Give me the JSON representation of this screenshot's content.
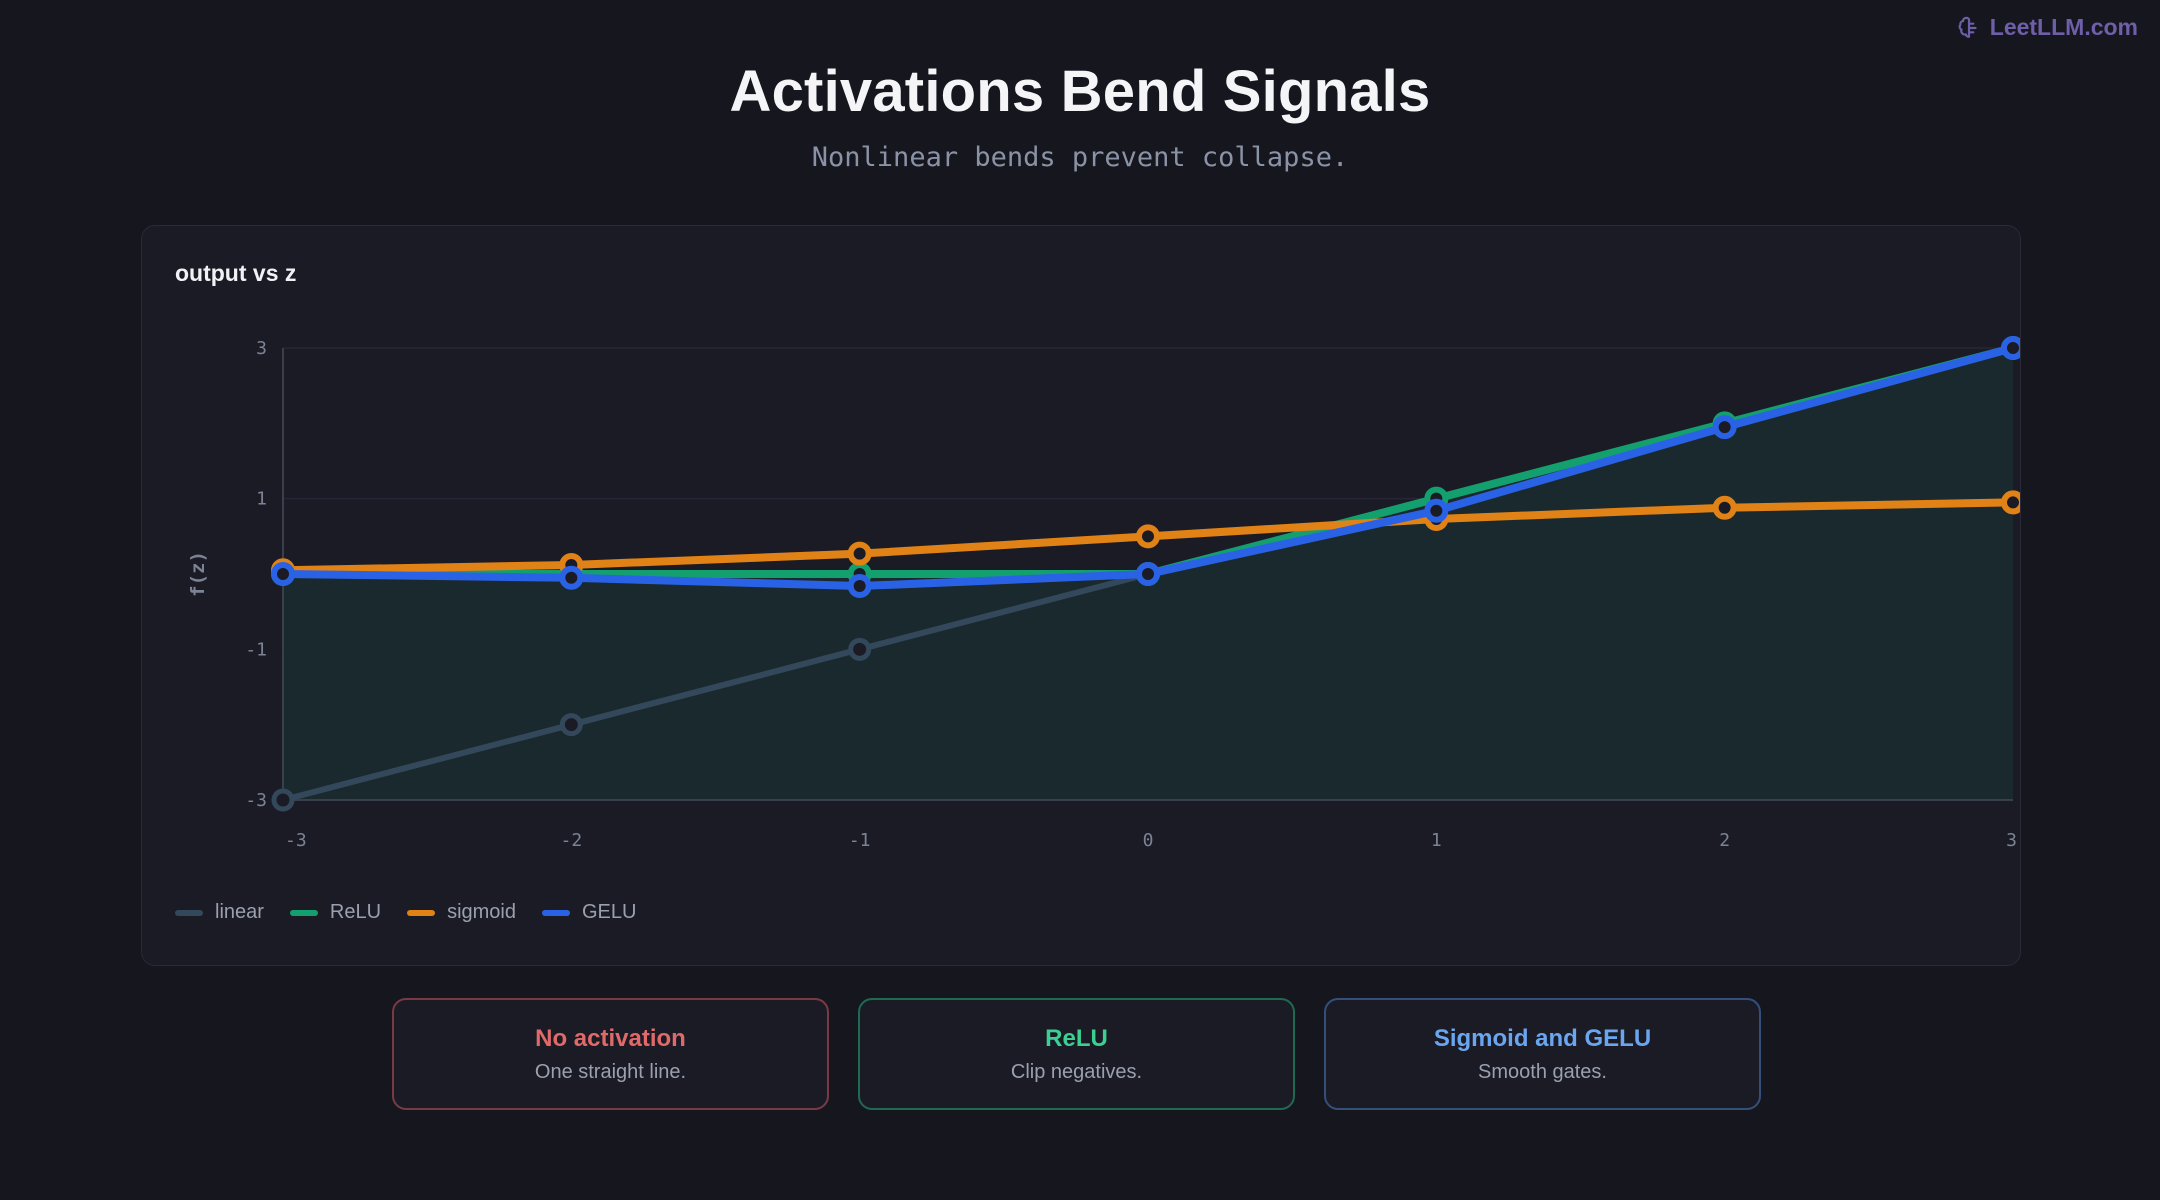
{
  "brand": {
    "label": "LeetLLM.com",
    "icon": "brain-icon"
  },
  "header": {
    "title": "Activations Bend Signals",
    "subtitle": "Nonlinear bends prevent collapse."
  },
  "chart_panel": {
    "title": "output vs z"
  },
  "chart_data": {
    "type": "line",
    "title": "output vs z",
    "xlabel": "",
    "ylabel": "f(z)",
    "x": [
      -3,
      -2,
      -1,
      0,
      1,
      2,
      3
    ],
    "xlim": [
      -3,
      3
    ],
    "ylim": [
      -3,
      3
    ],
    "x_ticks": [
      "-3",
      "-2",
      "-1",
      "0",
      "1",
      "2",
      "3"
    ],
    "y_ticks": [
      "3",
      "1",
      "-1",
      "-3"
    ],
    "y_tick_values": [
      3,
      1,
      -1,
      -3
    ],
    "grid": true,
    "legend_position": "bottom-left",
    "series": [
      {
        "name": "linear",
        "color": "#33485a",
        "values": [
          -3,
          -2,
          -1,
          0,
          1,
          2,
          3
        ]
      },
      {
        "name": "ReLU",
        "color": "#14a06e",
        "values": [
          0,
          0,
          0,
          0,
          1,
          2,
          3
        ]
      },
      {
        "name": "sigmoid",
        "color": "#e08215",
        "values": [
          0.05,
          0.12,
          0.27,
          0.5,
          0.73,
          0.88,
          0.95
        ]
      },
      {
        "name": "GELU",
        "color": "#2a62e6",
        "values": [
          0,
          -0.05,
          -0.16,
          0,
          0.84,
          1.95,
          3
        ]
      }
    ]
  },
  "cards": [
    {
      "title": "No activation",
      "text": "One straight line.",
      "color": "#e06a6a",
      "border": "#7a3a44"
    },
    {
      "title": "ReLU",
      "text": "Clip negatives.",
      "color": "#3ccf92",
      "border": "#1f6a52"
    },
    {
      "title": "Sigmoid and GELU",
      "text": "Smooth gates.",
      "color": "#6aa6f0",
      "border": "#34507a"
    }
  ]
}
